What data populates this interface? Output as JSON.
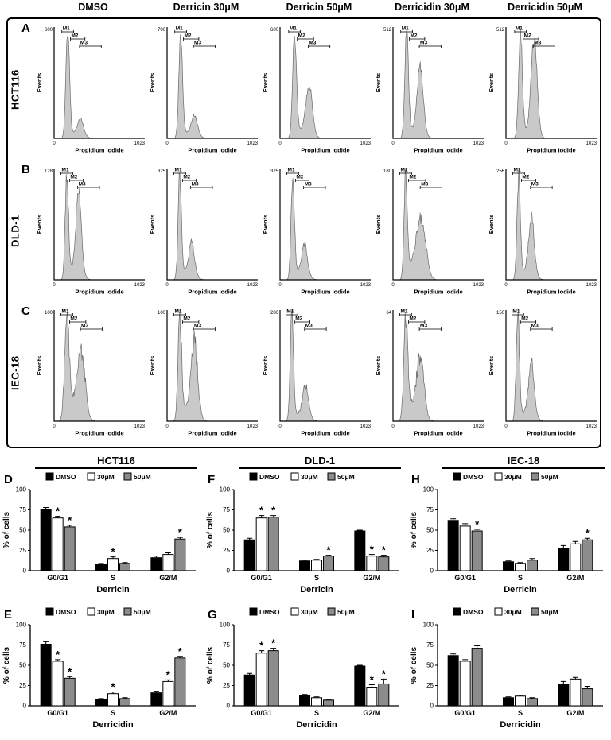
{
  "flow": {
    "column_headers": [
      "DMSO",
      "Derricin 30μM",
      "Derricin 50μM",
      "Derricidin 30μM",
      "Derricidin 50μM"
    ],
    "xlabel": "Propidium Iodide",
    "ylabel": "Events",
    "xmin": "0",
    "xmax": "1023",
    "markers": [
      "M1",
      "M2",
      "M3"
    ],
    "rows": [
      {
        "panel": "A",
        "cell_line": "HCT116",
        "histograms": [
          {
            "ymax": "600",
            "g1": {
              "c": 0.15,
              "h": 0.96,
              "w": 0.02
            },
            "g2": {
              "c": 0.29,
              "h": 0.13,
              "w": 0.03
            },
            "s": 0.05,
            "noise": 0.25,
            "seed": 11
          },
          {
            "ymax": "700",
            "g1": {
              "c": 0.15,
              "h": 0.95,
              "w": 0.02
            },
            "g2": {
              "c": 0.3,
              "h": 0.16,
              "w": 0.032
            },
            "s": 0.05,
            "noise": 0.25,
            "seed": 23
          },
          {
            "ymax": "600",
            "g1": {
              "c": 0.16,
              "h": 0.93,
              "w": 0.021
            },
            "g2": {
              "c": 0.32,
              "h": 0.4,
              "w": 0.034
            },
            "s": 0.08,
            "noise": 0.25,
            "seed": 37
          },
          {
            "ymax": "512",
            "g1": {
              "c": 0.15,
              "h": 0.95,
              "w": 0.02
            },
            "g2": {
              "c": 0.3,
              "h": 0.58,
              "w": 0.032
            },
            "s": 0.08,
            "noise": 0.25,
            "seed": 53
          },
          {
            "ymax": "512",
            "g1": {
              "c": 0.16,
              "h": 0.92,
              "w": 0.021
            },
            "g2": {
              "c": 0.31,
              "h": 0.85,
              "w": 0.032
            },
            "s": 0.07,
            "noise": 0.25,
            "seed": 71
          }
        ]
      },
      {
        "panel": "B",
        "cell_line": "DLD-1",
        "histograms": [
          {
            "ymax": "128",
            "g1": {
              "c": 0.14,
              "h": 0.95,
              "w": 0.018
            },
            "g2": {
              "c": 0.27,
              "h": 0.75,
              "w": 0.028
            },
            "s": 0.1,
            "noise": 0.35,
            "seed": 13
          },
          {
            "ymax": "325",
            "g1": {
              "c": 0.14,
              "h": 0.96,
              "w": 0.018
            },
            "g2": {
              "c": 0.27,
              "h": 0.27,
              "w": 0.028
            },
            "s": 0.08,
            "noise": 0.35,
            "seed": 29
          },
          {
            "ymax": "325",
            "g1": {
              "c": 0.14,
              "h": 0.96,
              "w": 0.018
            },
            "g2": {
              "c": 0.27,
              "h": 0.25,
              "w": 0.028
            },
            "s": 0.08,
            "noise": 0.35,
            "seed": 41
          },
          {
            "ymax": "180",
            "g1": {
              "c": 0.14,
              "h": 0.95,
              "w": 0.018
            },
            "g2": {
              "c": 0.31,
              "h": 0.42,
              "w": 0.05
            },
            "s": 0.14,
            "noise": 0.35,
            "seed": 59
          },
          {
            "ymax": "256",
            "g1": {
              "c": 0.14,
              "h": 0.95,
              "w": 0.018
            },
            "g2": {
              "c": 0.28,
              "h": 0.48,
              "w": 0.03
            },
            "s": 0.08,
            "noise": 0.35,
            "seed": 73
          }
        ]
      },
      {
        "panel": "C",
        "cell_line": "IEC-18",
        "histograms": [
          {
            "ymax": "100",
            "g1": {
              "c": 0.14,
              "h": 0.88,
              "w": 0.025
            },
            "g2": {
              "c": 0.3,
              "h": 0.42,
              "w": 0.04
            },
            "s": 0.2,
            "noise": 0.5,
            "seed": 17
          },
          {
            "ymax": "100",
            "g1": {
              "c": 0.14,
              "h": 0.92,
              "w": 0.02
            },
            "g2": {
              "c": 0.3,
              "h": 0.6,
              "w": 0.035
            },
            "s": 0.12,
            "noise": 0.5,
            "seed": 31
          },
          {
            "ymax": "280",
            "g1": {
              "c": 0.13,
              "h": 0.95,
              "w": 0.018
            },
            "g2": {
              "c": 0.28,
              "h": 0.26,
              "w": 0.03
            },
            "s": 0.07,
            "noise": 0.4,
            "seed": 43
          },
          {
            "ymax": "64",
            "g1": {
              "c": 0.14,
              "h": 0.92,
              "w": 0.022
            },
            "g2": {
              "c": 0.3,
              "h": 0.4,
              "w": 0.038
            },
            "s": 0.16,
            "noise": 0.55,
            "seed": 61
          },
          {
            "ymax": "150",
            "g1": {
              "c": 0.13,
              "h": 0.95,
              "w": 0.018
            },
            "g2": {
              "c": 0.28,
              "h": 0.46,
              "w": 0.03
            },
            "s": 0.08,
            "noise": 0.4,
            "seed": 79
          }
        ]
      }
    ]
  },
  "bars": {
    "group_headers": [
      "HCT116",
      "DLD-1",
      "IEC-18"
    ],
    "legend": [
      {
        "label": "DMSO",
        "color": "#000000"
      },
      {
        "label": "30μM",
        "color": "#ffffff"
      },
      {
        "label": "50μM",
        "color": "#8c8c8c"
      }
    ],
    "ylabel": "% of cells",
    "yticks": [
      0,
      25,
      50,
      75,
      100
    ],
    "categories": [
      "G0/G1",
      "S",
      "G2/M"
    ],
    "sig_symbol": "*"
  },
  "chart_data": [
    {
      "type": "bar",
      "panel": "D",
      "group": "HCT116",
      "xlabel": "Derricin",
      "ylabel": "% of cells",
      "ylim": [
        0,
        100
      ],
      "categories": [
        "G0/G1",
        "S",
        "G2/M"
      ],
      "series": [
        {
          "name": "DMSO",
          "color": "#000000",
          "values": [
            76,
            8,
            16
          ],
          "errors": [
            2,
            1,
            2
          ],
          "sig": [
            false,
            false,
            false
          ]
        },
        {
          "name": "30μM",
          "color": "#ffffff",
          "values": [
            65,
            15,
            20
          ],
          "errors": [
            2,
            2,
            2
          ],
          "sig": [
            true,
            true,
            false
          ]
        },
        {
          "name": "50μM",
          "color": "#8c8c8c",
          "values": [
            54,
            9,
            39
          ],
          "errors": [
            2,
            1,
            2
          ],
          "sig": [
            true,
            false,
            true
          ]
        }
      ]
    },
    {
      "type": "bar",
      "panel": "E",
      "group": "HCT116",
      "xlabel": "Derricidin",
      "ylabel": "% of cells",
      "ylim": [
        0,
        100
      ],
      "categories": [
        "G0/G1",
        "S",
        "G2/M"
      ],
      "series": [
        {
          "name": "DMSO",
          "color": "#000000",
          "values": [
            76,
            8,
            16
          ],
          "errors": [
            3,
            1,
            2
          ],
          "sig": [
            false,
            false,
            false
          ]
        },
        {
          "name": "30μM",
          "color": "#ffffff",
          "values": [
            55,
            15,
            30
          ],
          "errors": [
            2,
            2,
            2
          ],
          "sig": [
            true,
            true,
            true
          ]
        },
        {
          "name": "50μM",
          "color": "#8c8c8c",
          "values": [
            34,
            9,
            59
          ],
          "errors": [
            2,
            1,
            2
          ],
          "sig": [
            true,
            false,
            true
          ]
        }
      ]
    },
    {
      "type": "bar",
      "panel": "F",
      "group": "DLD-1",
      "xlabel": "Derricin",
      "ylabel": "% of cells",
      "ylim": [
        0,
        100
      ],
      "categories": [
        "G0/G1",
        "S",
        "G2/M"
      ],
      "series": [
        {
          "name": "DMSO",
          "color": "#000000",
          "values": [
            38,
            12,
            49
          ],
          "errors": [
            2,
            1,
            1
          ],
          "sig": [
            false,
            false,
            false
          ]
        },
        {
          "name": "30μM",
          "color": "#ffffff",
          "values": [
            65,
            13,
            18
          ],
          "errors": [
            3,
            1,
            2
          ],
          "sig": [
            true,
            false,
            true
          ]
        },
        {
          "name": "50μM",
          "color": "#8c8c8c",
          "values": [
            66,
            18,
            17
          ],
          "errors": [
            2,
            1,
            2
          ],
          "sig": [
            true,
            true,
            true
          ]
        }
      ]
    },
    {
      "type": "bar",
      "panel": "G",
      "group": "DLD-1",
      "xlabel": "Derricidin",
      "ylabel": "% of cells",
      "ylim": [
        0,
        100
      ],
      "categories": [
        "G0/G1",
        "S",
        "G2/M"
      ],
      "series": [
        {
          "name": "DMSO",
          "color": "#000000",
          "values": [
            38,
            13,
            49
          ],
          "errors": [
            2,
            1,
            1
          ],
          "sig": [
            false,
            false,
            false
          ]
        },
        {
          "name": "30μM",
          "color": "#ffffff",
          "values": [
            65,
            10,
            23
          ],
          "errors": [
            3,
            1,
            3
          ],
          "sig": [
            true,
            false,
            true
          ]
        },
        {
          "name": "50μM",
          "color": "#8c8c8c",
          "values": [
            68,
            7,
            27
          ],
          "errors": [
            3,
            1,
            6
          ],
          "sig": [
            true,
            false,
            true
          ]
        }
      ]
    },
    {
      "type": "bar",
      "panel": "H",
      "group": "IEC-18",
      "xlabel": "Derricin",
      "ylabel": "% of cells",
      "ylim": [
        0,
        100
      ],
      "categories": [
        "G0/G1",
        "S",
        "G2/M"
      ],
      "series": [
        {
          "name": "DMSO",
          "color": "#000000",
          "values": [
            62,
            11,
            27
          ],
          "errors": [
            2,
            1,
            4
          ],
          "sig": [
            false,
            false,
            false
          ]
        },
        {
          "name": "30μM",
          "color": "#ffffff",
          "values": [
            55,
            9,
            33
          ],
          "errors": [
            3,
            1,
            3
          ],
          "sig": [
            false,
            false,
            false
          ]
        },
        {
          "name": "50μM",
          "color": "#8c8c8c",
          "values": [
            49,
            13,
            38
          ],
          "errors": [
            2,
            2,
            2
          ],
          "sig": [
            true,
            false,
            true
          ]
        }
      ]
    },
    {
      "type": "bar",
      "panel": "I",
      "group": "IEC-18",
      "xlabel": "Derricidin",
      "ylabel": "% of cells",
      "ylim": [
        0,
        100
      ],
      "categories": [
        "G0/G1",
        "S",
        "G2/M"
      ],
      "series": [
        {
          "name": "DMSO",
          "color": "#000000",
          "values": [
            62,
            10,
            26
          ],
          "errors": [
            2,
            1,
            4
          ],
          "sig": [
            false,
            false,
            false
          ]
        },
        {
          "name": "30μM",
          "color": "#ffffff",
          "values": [
            55,
            12,
            33
          ],
          "errors": [
            2,
            1,
            2
          ],
          "sig": [
            false,
            false,
            false
          ]
        },
        {
          "name": "50μM",
          "color": "#8c8c8c",
          "values": [
            71,
            9,
            21
          ],
          "errors": [
            3,
            1,
            3
          ],
          "sig": [
            false,
            false,
            false
          ]
        }
      ]
    }
  ]
}
